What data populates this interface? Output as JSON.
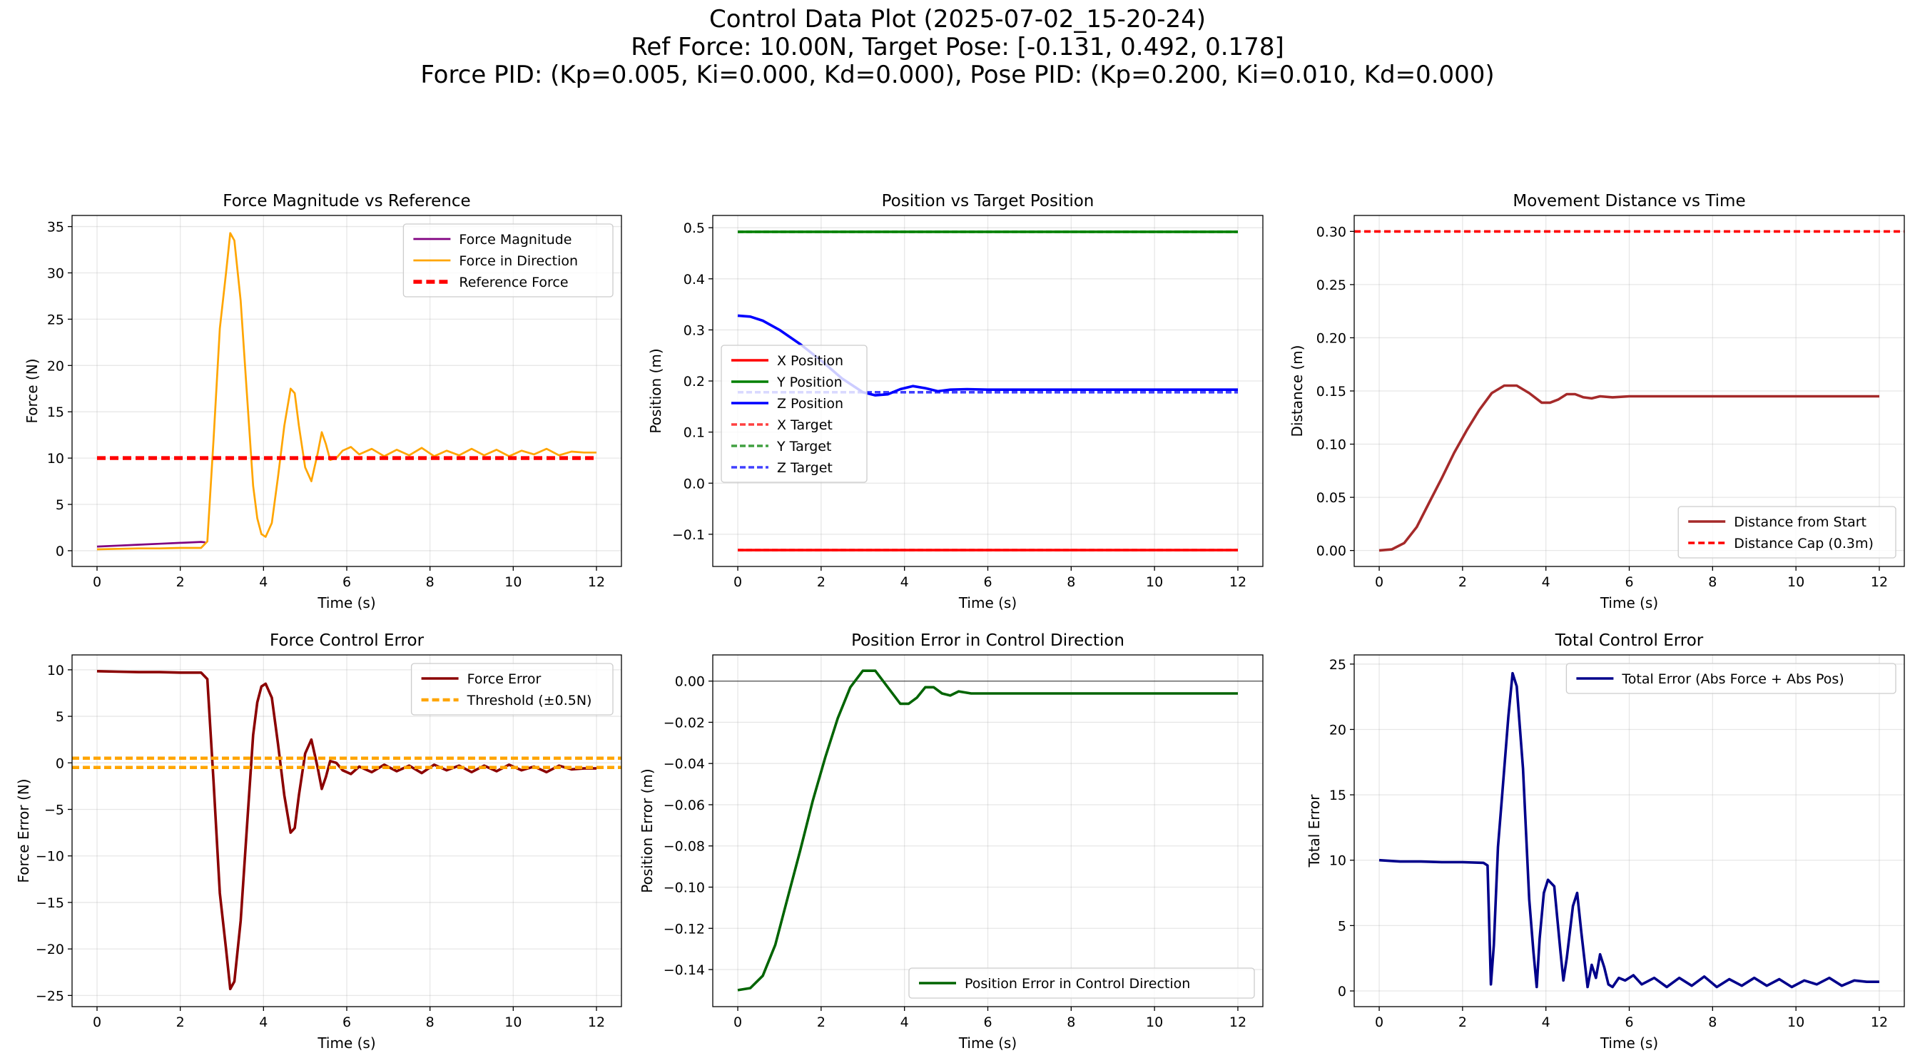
{
  "suptitle": {
    "line1": "Control Data Plot (2025-07-02_15-20-24)",
    "line2": "Ref Force: 10.00N, Target Pose: [-0.131, 0.492, 0.178]",
    "line3": "Force PID: (Kp=0.005, Ki=0.000, Kd=0.000), Pose PID: (Kp=0.200, Ki=0.010, Kd=0.000)"
  },
  "chart_data": [
    {
      "id": "force",
      "type": "line",
      "title": "Force Magnitude vs Reference",
      "xlabel": "Time (s)",
      "ylabel": "Force (N)",
      "xlim": [
        -0.6,
        12.6
      ],
      "ylim": [
        -1.7,
        36.2
      ],
      "xticks": [
        0,
        2,
        4,
        6,
        8,
        10,
        12
      ],
      "yticks": [
        0,
        5,
        10,
        15,
        20,
        25,
        30,
        35
      ],
      "grid": true,
      "legend": "top-right",
      "series": [
        {
          "name": "Force Magnitude",
          "color": "#800080",
          "width": 1.5,
          "x": [
            0,
            0.5,
            1,
            1.5,
            2,
            2.5,
            2.6
          ],
          "y": [
            0.45,
            0.55,
            0.65,
            0.75,
            0.85,
            0.95,
            0.9
          ]
        },
        {
          "name": "Force in Direction",
          "color": "#FFA500",
          "width": 1.5,
          "x": [
            0,
            0.5,
            1,
            1.5,
            2,
            2.5,
            2.65,
            2.8,
            2.95,
            3.1,
            3.2,
            3.3,
            3.45,
            3.6,
            3.75,
            3.85,
            3.95,
            4.05,
            4.2,
            4.35,
            4.5,
            4.65,
            4.75,
            4.85,
            5.0,
            5.15,
            5.3,
            5.4,
            5.5,
            5.6,
            5.75,
            5.9,
            6.1,
            6.3,
            6.6,
            6.9,
            7.2,
            7.5,
            7.8,
            8.1,
            8.4,
            8.7,
            9.0,
            9.3,
            9.6,
            9.9,
            10.2,
            10.5,
            10.8,
            11.1,
            11.4,
            11.7,
            12.0
          ],
          "y": [
            0.15,
            0.2,
            0.25,
            0.25,
            0.3,
            0.3,
            1.0,
            12.0,
            24.0,
            30.0,
            34.3,
            33.5,
            27.0,
            17.0,
            7.0,
            3.5,
            1.8,
            1.5,
            3.0,
            8.0,
            13.5,
            17.5,
            17.0,
            13.5,
            9.0,
            7.5,
            10.5,
            12.8,
            11.5,
            9.8,
            10.0,
            10.8,
            11.2,
            10.4,
            11.0,
            10.2,
            10.9,
            10.3,
            11.1,
            10.2,
            10.8,
            10.3,
            11.0,
            10.3,
            10.9,
            10.2,
            10.8,
            10.4,
            11.0,
            10.3,
            10.7,
            10.6,
            10.6
          ]
        },
        {
          "name": "Reference Force",
          "color": "#FF0000",
          "width": 3,
          "dash": "12,6",
          "x": [
            0,
            12
          ],
          "y": [
            10,
            10
          ]
        }
      ]
    },
    {
      "id": "position",
      "type": "line",
      "title": "Position vs Target Position",
      "xlabel": "Time (s)",
      "ylabel": "Position (m)",
      "xlim": [
        -0.6,
        12.6
      ],
      "ylim": [
        -0.163,
        0.524
      ],
      "xticks": [
        0,
        2,
        4,
        6,
        8,
        10,
        12
      ],
      "yticks": [
        -0.1,
        0.0,
        0.1,
        0.2,
        0.3,
        0.4,
        0.5
      ],
      "ytick_labels": [
        "−0.1",
        "0.0",
        "0.1",
        "0.2",
        "0.3",
        "0.4",
        "0.5"
      ],
      "grid": true,
      "legend": "center-left",
      "series": [
        {
          "name": "X Position",
          "color": "#FF0000",
          "width": 2,
          "x": [
            0,
            12
          ],
          "y": [
            -0.131,
            -0.131
          ]
        },
        {
          "name": "Y Position",
          "color": "#008000",
          "width": 2,
          "x": [
            0,
            12
          ],
          "y": [
            0.492,
            0.492
          ]
        },
        {
          "name": "Z Position",
          "color": "#0000FF",
          "width": 2,
          "x": [
            0,
            0.3,
            0.6,
            1.0,
            1.5,
            2.0,
            2.5,
            3.0,
            3.3,
            3.6,
            3.9,
            4.2,
            4.5,
            4.8,
            5.1,
            5.5,
            6,
            7,
            8,
            9,
            10,
            11,
            12
          ],
          "y": [
            0.328,
            0.326,
            0.318,
            0.3,
            0.272,
            0.24,
            0.205,
            0.178,
            0.172,
            0.174,
            0.184,
            0.19,
            0.186,
            0.18,
            0.183,
            0.184,
            0.183,
            0.183,
            0.183,
            0.183,
            0.183,
            0.183,
            0.183
          ]
        },
        {
          "name": "X Target",
          "color": "#FF0000",
          "width": 2,
          "dash": "8,4",
          "alpha": 0.75,
          "x": [
            0,
            12
          ],
          "y": [
            -0.131,
            -0.131
          ]
        },
        {
          "name": "Y Target",
          "color": "#008000",
          "width": 2,
          "dash": "8,4",
          "alpha": 0.75,
          "x": [
            0,
            12
          ],
          "y": [
            0.492,
            0.492
          ]
        },
        {
          "name": "Z Target",
          "color": "#0000FF",
          "width": 2,
          "dash": "8,4",
          "alpha": 0.75,
          "x": [
            0,
            12
          ],
          "y": [
            0.178,
            0.178
          ]
        }
      ]
    },
    {
      "id": "distance",
      "type": "line",
      "title": "Movement Distance vs Time",
      "xlabel": "Time (s)",
      "ylabel": "Distance (m)",
      "xlim": [
        -0.6,
        12.6
      ],
      "ylim": [
        -0.015,
        0.315
      ],
      "xticks": [
        0,
        2,
        4,
        6,
        8,
        10,
        12
      ],
      "yticks": [
        0.0,
        0.05,
        0.1,
        0.15,
        0.2,
        0.25,
        0.3
      ],
      "ytick_labels": [
        "0.00",
        "0.05",
        "0.10",
        "0.15",
        "0.20",
        "0.25",
        "0.30"
      ],
      "grid": true,
      "legend": "bottom-right",
      "series": [
        {
          "name": "Distance from Start",
          "color": "#A52A2A",
          "width": 2,
          "x": [
            0,
            0.3,
            0.6,
            0.9,
            1.2,
            1.5,
            1.8,
            2.1,
            2.4,
            2.7,
            3.0,
            3.3,
            3.6,
            3.9,
            4.1,
            4.3,
            4.5,
            4.7,
            4.9,
            5.1,
            5.3,
            5.6,
            6,
            7,
            8,
            9,
            10,
            11,
            12
          ],
          "y": [
            0.0,
            0.001,
            0.007,
            0.022,
            0.045,
            0.068,
            0.092,
            0.113,
            0.132,
            0.148,
            0.155,
            0.155,
            0.148,
            0.139,
            0.139,
            0.142,
            0.147,
            0.147,
            0.144,
            0.143,
            0.145,
            0.144,
            0.145,
            0.145,
            0.145,
            0.145,
            0.145,
            0.145,
            0.145
          ]
        },
        {
          "name": "Distance Cap (0.3m)",
          "color": "#FF0000",
          "width": 2,
          "dash": "9,5",
          "x": [
            -0.6,
            12.6
          ],
          "y": [
            0.3,
            0.3
          ]
        }
      ]
    },
    {
      "id": "force_error",
      "type": "line",
      "title": "Force Control Error",
      "xlabel": "Time (s)",
      "ylabel": "Force Error (N)",
      "xlim": [
        -0.6,
        12.6
      ],
      "ylim": [
        -26.2,
        11.6
      ],
      "xticks": [
        0,
        2,
        4,
        6,
        8,
        10,
        12
      ],
      "yticks": [
        -25,
        -20,
        -15,
        -10,
        -5,
        0,
        5,
        10
      ],
      "ytick_labels": [
        "−25",
        "−20",
        "−15",
        "−10",
        "−5",
        "0",
        "5",
        "10"
      ],
      "grid": true,
      "legend": "top-right",
      "series": [
        {
          "name": "Force Error",
          "color": "#8B0000",
          "width": 2,
          "x": [
            0,
            0.5,
            1,
            1.5,
            2,
            2.5,
            2.65,
            2.8,
            2.95,
            3.1,
            3.2,
            3.3,
            3.45,
            3.6,
            3.75,
            3.85,
            3.95,
            4.05,
            4.2,
            4.35,
            4.5,
            4.65,
            4.75,
            4.85,
            5.0,
            5.15,
            5.3,
            5.4,
            5.5,
            5.6,
            5.75,
            5.9,
            6.1,
            6.3,
            6.6,
            6.9,
            7.2,
            7.5,
            7.8,
            8.1,
            8.4,
            8.7,
            9.0,
            9.3,
            9.6,
            9.9,
            10.2,
            10.5,
            10.8,
            11.1,
            11.4,
            11.7,
            12.0
          ],
          "y": [
            9.85,
            9.8,
            9.75,
            9.75,
            9.7,
            9.7,
            9.0,
            -2.0,
            -14.0,
            -20.0,
            -24.3,
            -23.5,
            -17.0,
            -7.0,
            3.0,
            6.5,
            8.2,
            8.5,
            7.0,
            2.0,
            -3.5,
            -7.5,
            -7.0,
            -3.5,
            1.0,
            2.5,
            -0.5,
            -2.8,
            -1.5,
            0.2,
            0.0,
            -0.8,
            -1.2,
            -0.4,
            -1.0,
            -0.2,
            -0.9,
            -0.3,
            -1.1,
            -0.2,
            -0.8,
            -0.3,
            -1.0,
            -0.3,
            -0.9,
            -0.2,
            -0.8,
            -0.4,
            -1.0,
            -0.3,
            -0.7,
            -0.6,
            -0.6
          ]
        },
        {
          "name": "Threshold (±0.5N)",
          "color": "#FFA500",
          "width": 2.5,
          "dash": "10,5",
          "x": [
            -0.6,
            12.6
          ],
          "y": [
            0.5,
            0.5
          ]
        },
        {
          "name": "",
          "color": "#FFA500",
          "width": 2.5,
          "dash": "10,5",
          "x": [
            -0.6,
            12.6
          ],
          "y": [
            -0.5,
            -0.5
          ]
        }
      ]
    },
    {
      "id": "position_error",
      "type": "line",
      "title": "Position Error in Control Direction",
      "xlabel": "Time (s)",
      "ylabel": "Position Error (m)",
      "xlim": [
        -0.6,
        12.6
      ],
      "ylim": [
        -0.158,
        0.0127
      ],
      "xticks": [
        0,
        2,
        4,
        6,
        8,
        10,
        12
      ],
      "yticks": [
        -0.14,
        -0.12,
        -0.1,
        -0.08,
        -0.06,
        -0.04,
        -0.02,
        0.0
      ],
      "ytick_labels": [
        "−0.14",
        "−0.12",
        "−0.10",
        "−0.08",
        "−0.06",
        "−0.04",
        "−0.02",
        "0.00"
      ],
      "grid": true,
      "legend": "bottom-right",
      "zero_line": true,
      "series": [
        {
          "name": "Position Error in Control Direction",
          "color": "#006400",
          "width": 2,
          "x": [
            0,
            0.3,
            0.6,
            0.9,
            1.2,
            1.5,
            1.8,
            2.1,
            2.4,
            2.7,
            3.0,
            3.3,
            3.6,
            3.9,
            4.1,
            4.3,
            4.5,
            4.7,
            4.9,
            5.1,
            5.3,
            5.6,
            6,
            7,
            8,
            9,
            10,
            11,
            12
          ],
          "y": [
            -0.15,
            -0.149,
            -0.143,
            -0.128,
            -0.105,
            -0.082,
            -0.058,
            -0.037,
            -0.018,
            -0.003,
            0.005,
            0.005,
            -0.003,
            -0.011,
            -0.011,
            -0.008,
            -0.003,
            -0.003,
            -0.006,
            -0.007,
            -0.005,
            -0.006,
            -0.006,
            -0.006,
            -0.006,
            -0.006,
            -0.006,
            -0.006,
            -0.006
          ]
        }
      ]
    },
    {
      "id": "total_error",
      "type": "line",
      "title": "Total Control Error",
      "xlabel": "Time (s)",
      "ylabel": "Total Error",
      "xlim": [
        -0.6,
        12.6
      ],
      "ylim": [
        -1.2,
        25.7
      ],
      "xticks": [
        0,
        2,
        4,
        6,
        8,
        10,
        12
      ],
      "yticks": [
        0,
        5,
        10,
        15,
        20,
        25
      ],
      "grid": true,
      "legend": "top-right",
      "series": [
        {
          "name": "Total Error (Abs Force + Abs Pos)",
          "color": "#00008B",
          "width": 2,
          "x": [
            0,
            0.5,
            1,
            1.5,
            2,
            2.5,
            2.6,
            2.68,
            2.75,
            2.85,
            2.95,
            3.1,
            3.2,
            3.3,
            3.45,
            3.6,
            3.7,
            3.78,
            3.85,
            3.95,
            4.05,
            4.2,
            4.35,
            4.42,
            4.5,
            4.65,
            4.75,
            4.85,
            5.0,
            5.1,
            5.2,
            5.3,
            5.4,
            5.5,
            5.6,
            5.75,
            5.9,
            6.1,
            6.3,
            6.6,
            6.9,
            7.2,
            7.5,
            7.8,
            8.1,
            8.4,
            8.7,
            9.0,
            9.3,
            9.6,
            9.9,
            10.2,
            10.5,
            10.8,
            11.1,
            11.4,
            11.7,
            12.0
          ],
          "y": [
            10.0,
            9.9,
            9.9,
            9.85,
            9.85,
            9.8,
            9.6,
            0.5,
            3.5,
            11.0,
            15.0,
            21.0,
            24.3,
            23.3,
            17.0,
            7.0,
            3.0,
            0.3,
            4.0,
            7.5,
            8.5,
            8.0,
            3.0,
            0.8,
            2.5,
            6.5,
            7.5,
            4.5,
            0.3,
            2.0,
            1.0,
            2.8,
            1.8,
            0.5,
            0.3,
            1.0,
            0.8,
            1.2,
            0.5,
            1.0,
            0.3,
            1.0,
            0.4,
            1.1,
            0.3,
            0.9,
            0.4,
            1.0,
            0.4,
            0.9,
            0.3,
            0.8,
            0.5,
            1.0,
            0.4,
            0.8,
            0.7,
            0.7
          ]
        }
      ]
    }
  ]
}
